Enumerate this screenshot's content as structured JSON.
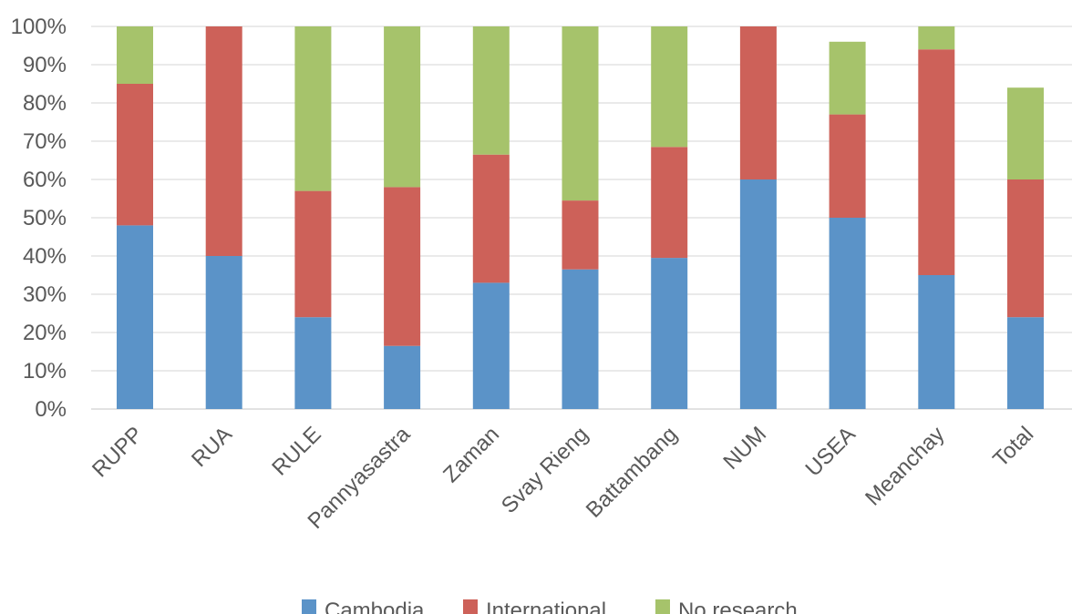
{
  "chart_data": {
    "type": "bar",
    "stacked": true,
    "categories": [
      "RUPP",
      "RUA",
      "RULE",
      "Pannyasastra",
      "Zaman",
      "Svay Rieng",
      "Battambang",
      "NUM",
      "USEA",
      "Meanchay",
      "Total"
    ],
    "series": [
      {
        "name": "Cambodia",
        "color": "#5B93C8",
        "values": [
          48,
          40,
          24,
          16.5,
          33,
          36.5,
          39.5,
          60,
          50,
          35,
          24
        ]
      },
      {
        "name": "International",
        "color": "#CD6159",
        "values": [
          37,
          60,
          33,
          41.5,
          33.5,
          18,
          29,
          40,
          27,
          59,
          36
        ]
      },
      {
        "name": "No research",
        "color": "#A6C36B",
        "values": [
          15,
          0,
          43,
          42,
          33.5,
          45.5,
          31.5,
          0,
          19,
          6,
          24
        ]
      }
    ],
    "yaxis": {
      "min": 0,
      "max": 100,
      "step": 10,
      "tick_labels": [
        "0%",
        "10%",
        "20%",
        "30%",
        "40%",
        "50%",
        "60%",
        "70%",
        "80%",
        "90%",
        "100%"
      ]
    },
    "grid": true,
    "legend": "bottom",
    "title": "",
    "xlabel": "",
    "ylabel": ""
  }
}
